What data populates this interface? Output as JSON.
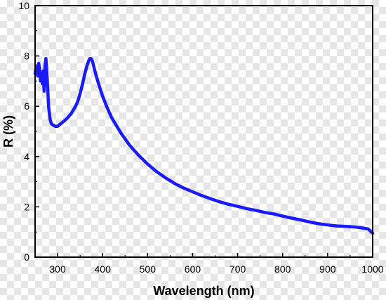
{
  "chart_data": {
    "type": "line",
    "xlabel": "Wavelength (nm)",
    "ylabel": "R (%)",
    "xlim": [
      250,
      1000
    ],
    "ylim": [
      0,
      10
    ],
    "x_ticks": [
      300,
      400,
      500,
      600,
      700,
      800,
      900,
      1000
    ],
    "y_ticks": [
      0,
      2,
      4,
      6,
      8,
      10
    ],
    "grid": false,
    "series_color": "#1a1aff",
    "series": [
      {
        "x": [
          250,
          253,
          256,
          258,
          260,
          262,
          264,
          266,
          268,
          270,
          272,
          274,
          276,
          278,
          280,
          283,
          286,
          290,
          295,
          300,
          305,
          310,
          315,
          320,
          325,
          330,
          335,
          340,
          345,
          350,
          355,
          360,
          365,
          370,
          372,
          374,
          376,
          378,
          380,
          385,
          390,
          400,
          410,
          420,
          440,
          460,
          480,
          500,
          520,
          540,
          560,
          580,
          600,
          620,
          640,
          660,
          680,
          700,
          720,
          740,
          760,
          780,
          800,
          820,
          840,
          860,
          880,
          900,
          920,
          940,
          960,
          970,
          980,
          990,
          1000
        ],
        "y": [
          7.3,
          7.6,
          7.2,
          7.7,
          7.5,
          7.0,
          7.3,
          6.9,
          7.4,
          6.6,
          7.6,
          7.9,
          7.3,
          6.7,
          6.0,
          5.5,
          5.3,
          5.25,
          5.2,
          5.2,
          5.28,
          5.35,
          5.42,
          5.5,
          5.6,
          5.7,
          5.85,
          6.0,
          6.2,
          6.5,
          6.85,
          7.25,
          7.6,
          7.85,
          7.9,
          7.9,
          7.85,
          7.75,
          7.6,
          7.25,
          6.95,
          6.4,
          5.95,
          5.55,
          4.95,
          4.45,
          4.05,
          3.7,
          3.4,
          3.15,
          2.93,
          2.75,
          2.6,
          2.45,
          2.32,
          2.2,
          2.1,
          2.02,
          1.93,
          1.86,
          1.78,
          1.72,
          1.63,
          1.55,
          1.48,
          1.4,
          1.33,
          1.28,
          1.24,
          1.22,
          1.2,
          1.18,
          1.15,
          1.12,
          0.95
        ]
      }
    ]
  }
}
